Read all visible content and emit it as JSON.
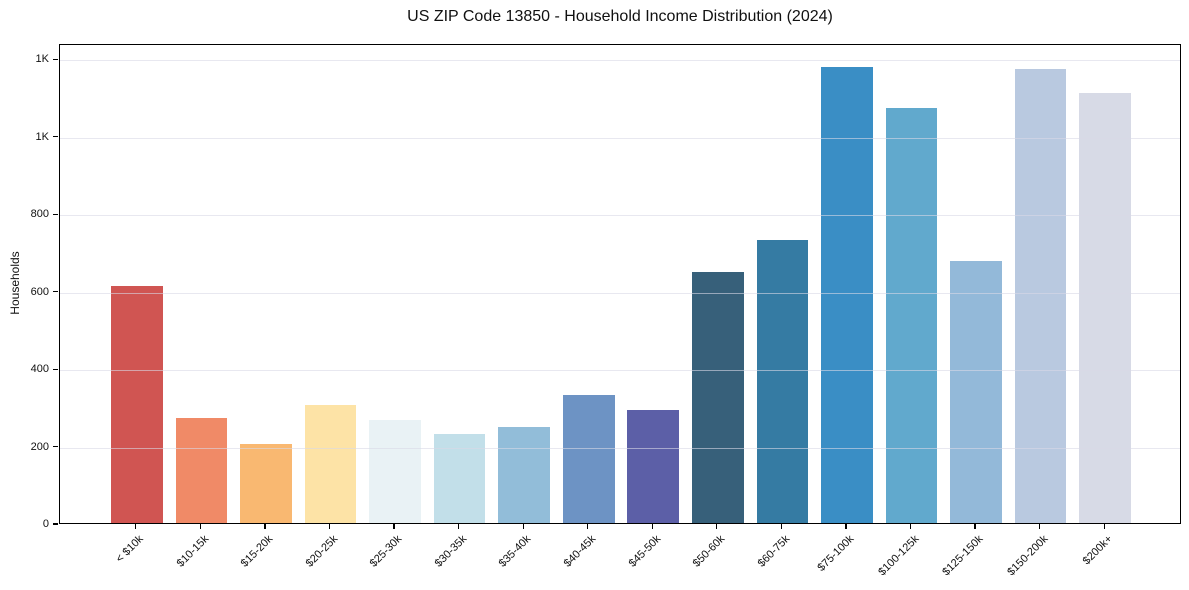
{
  "chart_data": {
    "type": "bar",
    "title": "US ZIP Code 13850 - Household Income Distribution (2024)",
    "xlabel": "",
    "ylabel": "Households",
    "categories": [
      "< $10k",
      "$10-15k",
      "$15-20k",
      "$20-25k",
      "$25-30k",
      "$30-35k",
      "$35-40k",
      "$40-45k",
      "$45-50k",
      "$50-60k",
      "$60-75k",
      "$75-100k",
      "$100-125k",
      "$125-150k",
      "$150-200k",
      "$200k+"
    ],
    "values": [
      612,
      272,
      204,
      305,
      265,
      231,
      248,
      330,
      291,
      648,
      732,
      1177,
      1071,
      676,
      1172,
      1110
    ],
    "bar_colors": [
      "#d05552",
      "#f08a67",
      "#f9b871",
      "#fde3a6",
      "#e9f2f5",
      "#c2dfe9",
      "#92bdd9",
      "#6d93c4",
      "#5c5fa7",
      "#37607a",
      "#357ba3",
      "#3a8ec5",
      "#61a9cd",
      "#93b9d9",
      "#b9c9e0",
      "#d7dae6"
    ],
    "ylim": [
      0,
      1240
    ],
    "yticks": {
      "values": [
        0,
        200,
        400,
        600,
        800,
        1000,
        1200
      ],
      "labels": [
        "0",
        "200",
        "400",
        "600",
        "800",
        "1K",
        "1K"
      ]
    },
    "grid": "horizontal",
    "legend": "none",
    "bar_width_fraction": 0.8
  },
  "styles": {
    "background": "#ffffff",
    "axis_color": "#000000",
    "text_color": "#111111",
    "grid_color": "#d9d9e6"
  }
}
